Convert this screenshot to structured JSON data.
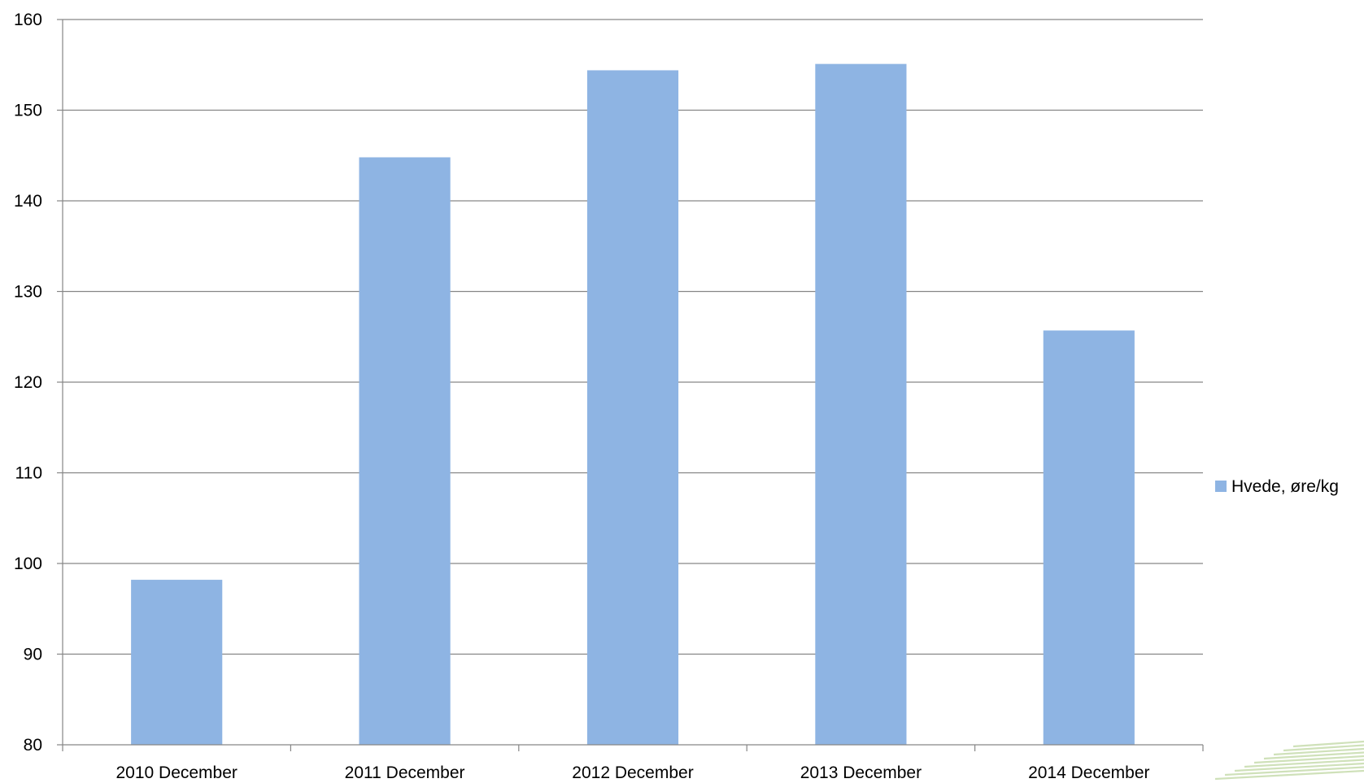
{
  "chart_data": {
    "type": "bar",
    "categories": [
      "2010 December",
      "2011 December",
      "2012 December",
      "2013 December",
      "2014 December"
    ],
    "series": [
      {
        "name": "Hvede,  øre/kg",
        "values": [
          98.2,
          144.8,
          154.4,
          155.1,
          125.7
        ],
        "color": "#8EB4E3"
      }
    ],
    "ylim": [
      80,
      160
    ],
    "yticks": [
      80,
      90,
      100,
      110,
      120,
      130,
      140,
      150,
      160
    ],
    "grid": true,
    "legend_position": "right",
    "title": "",
    "xlabel": "",
    "ylabel": ""
  }
}
